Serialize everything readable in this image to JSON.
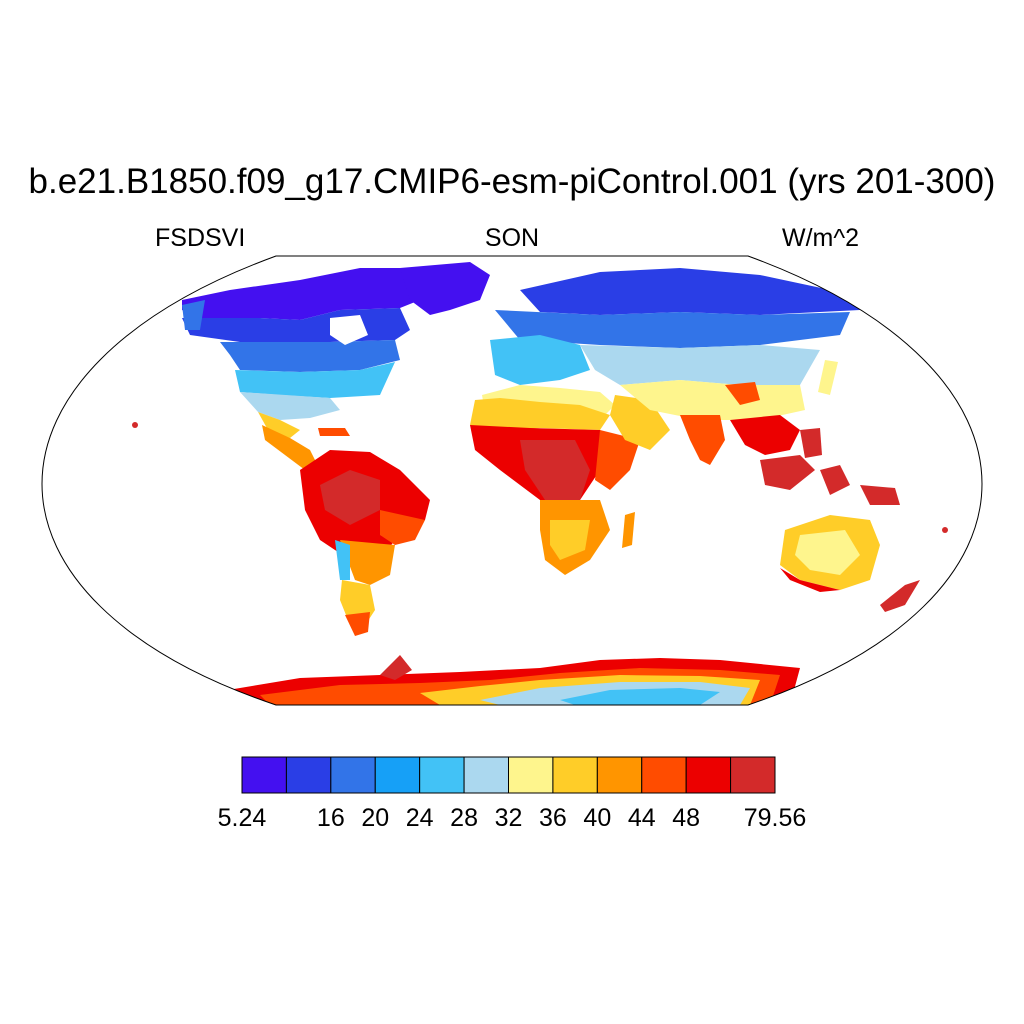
{
  "title": "b.e21.B1850.f09_g17.CMIP6-esm-piControl.001 (yrs 201-300)",
  "subtitle_left": "FSDSVI",
  "subtitle_center": "SON",
  "subtitle_right": "W/m^2",
  "colorbar": {
    "colors": [
      "#4410f0",
      "#2a3ee6",
      "#3274e8",
      "#16a0f7",
      "#42c2f6",
      "#abd8ef",
      "#fef58d",
      "#ffcd28",
      "#ff9500",
      "#ff4c00",
      "#ec0000",
      "#d32a2a"
    ],
    "labels": [
      "5.24",
      "16",
      "20",
      "24",
      "28",
      "32",
      "36",
      "40",
      "44",
      "48",
      "79.56"
    ],
    "label_boundaries": [
      0,
      2,
      3,
      4,
      5,
      6,
      7,
      8,
      9,
      10,
      12
    ]
  },
  "map": {
    "projection": "robinson",
    "land_outline_color": "#000000",
    "ocean_fill": "#ffffff"
  }
}
